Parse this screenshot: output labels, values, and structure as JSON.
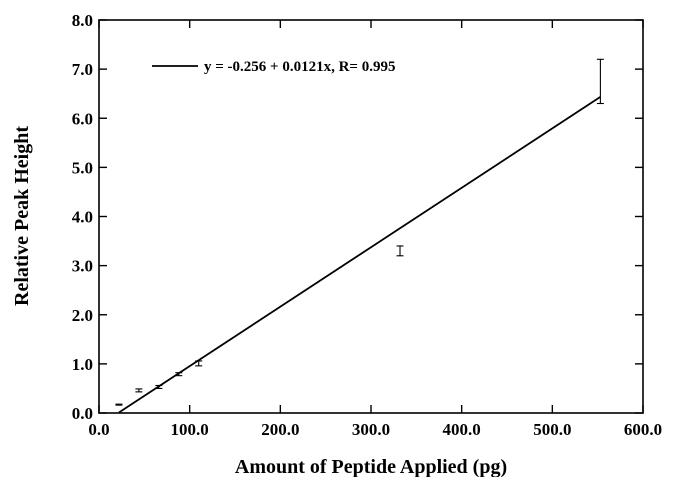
{
  "chart_data": {
    "type": "scatter",
    "title": "",
    "xlabel": "Amount of Peptide Applied (pg)",
    "ylabel": "Relative Peak Height",
    "xlim": [
      0,
      600
    ],
    "ylim": [
      0,
      8
    ],
    "x_ticks": [
      "0.0",
      "100.0",
      "200.0",
      "300.0",
      "400.0",
      "500.0",
      "600.0"
    ],
    "y_ticks": [
      "0.0",
      "1.0",
      "2.0",
      "3.0",
      "4.0",
      "5.0",
      "6.0",
      "7.0",
      "8.0"
    ],
    "grid": false,
    "legend_position": "top-left",
    "legend_text": "y = -0.256 + 0.0121x,   R= 0.995",
    "series": [
      {
        "points": [
          {
            "x": 22,
            "y": 0.17,
            "err": 0.01
          },
          {
            "x": 44,
            "y": 0.46,
            "err": 0.03
          },
          {
            "x": 66,
            "y": 0.53,
            "err": 0.03
          },
          {
            "x": 88,
            "y": 0.79,
            "err": 0.03
          },
          {
            "x": 110,
            "y": 1.01,
            "err": 0.05
          },
          {
            "x": 332,
            "y": 3.3,
            "err": 0.1
          },
          {
            "x": 553,
            "y": 6.75,
            "err": 0.45
          }
        ]
      }
    ],
    "fit": {
      "intercept": -0.256,
      "slope": 0.0121,
      "r": 0.995,
      "x_range": [
        22,
        553
      ]
    }
  }
}
